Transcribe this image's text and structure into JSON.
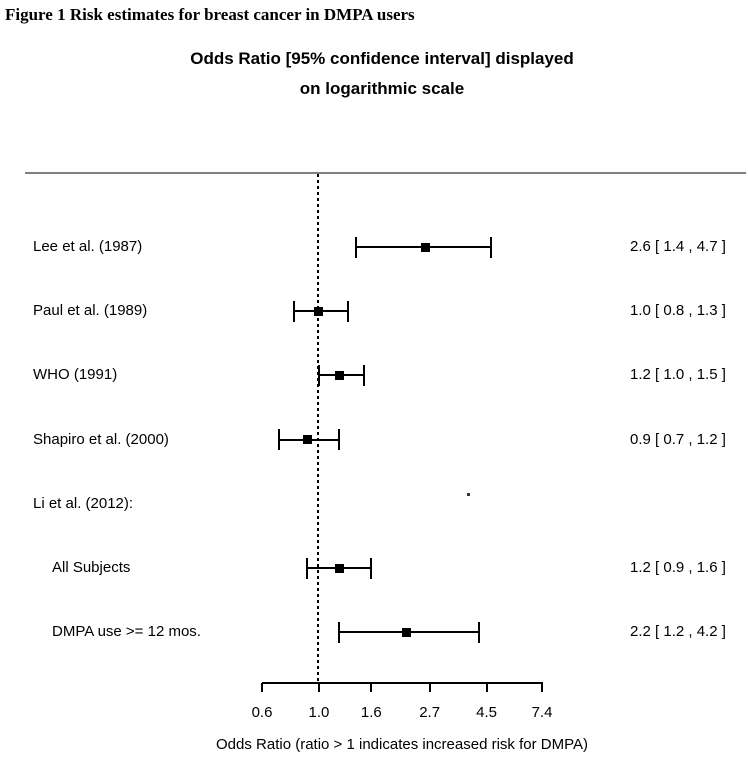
{
  "figure_caption": "Figure 1 Risk estimates for breast cancer in DMPA users",
  "colors": {
    "background": "#ffffff",
    "separator_line": "#7f7f7f",
    "marker": "#000000",
    "text": "#000000"
  },
  "chart_data": {
    "type": "forest",
    "title_line1": "Odds Ratio [95% confidence interval] displayed",
    "title_line2": "on logarithmic scale",
    "xlabel": "Odds Ratio (ratio > 1 indicates increased risk for DMPA)",
    "x_scale": "log",
    "xlim": [
      0.6,
      7.4
    ],
    "x_ticks": [
      0.6,
      1.0,
      1.6,
      2.7,
      4.5,
      7.4
    ],
    "x_tick_labels": [
      "0.6",
      "1.0",
      "1.6",
      "2.7",
      "4.5",
      "7.4"
    ],
    "reference_line": 1.0,
    "grid": false,
    "rows": [
      {
        "label": "Lee et al. (1987)",
        "indent": false,
        "or": 2.6,
        "lo": 1.4,
        "hi": 4.7,
        "value_text": "2.6 [ 1.4 , 4.7 ]"
      },
      {
        "label": "Paul et al. (1989)",
        "indent": false,
        "or": 1.0,
        "lo": 0.8,
        "hi": 1.3,
        "value_text": "1.0 [ 0.8 , 1.3 ]"
      },
      {
        "label": "WHO (1991)",
        "indent": false,
        "or": 1.2,
        "lo": 1.0,
        "hi": 1.5,
        "value_text": "1.2 [ 1.0 , 1.5 ]"
      },
      {
        "label": "Shapiro et al. (2000)",
        "indent": false,
        "or": 0.9,
        "lo": 0.7,
        "hi": 1.2,
        "value_text": "0.9 [ 0.7 , 1.2 ]"
      },
      {
        "label": "Li et al. (2012):",
        "indent": false,
        "header_only": true
      },
      {
        "label": "All Subjects",
        "indent": true,
        "or": 1.2,
        "lo": 0.9,
        "hi": 1.6,
        "value_text": "1.2 [ 0.9 , 1.6 ]"
      },
      {
        "label": "DMPA use >= 12 mos.",
        "indent": true,
        "or": 2.2,
        "lo": 1.2,
        "hi": 4.2,
        "value_text": "2.2 [ 1.2 , 4.2 ]"
      }
    ]
  }
}
